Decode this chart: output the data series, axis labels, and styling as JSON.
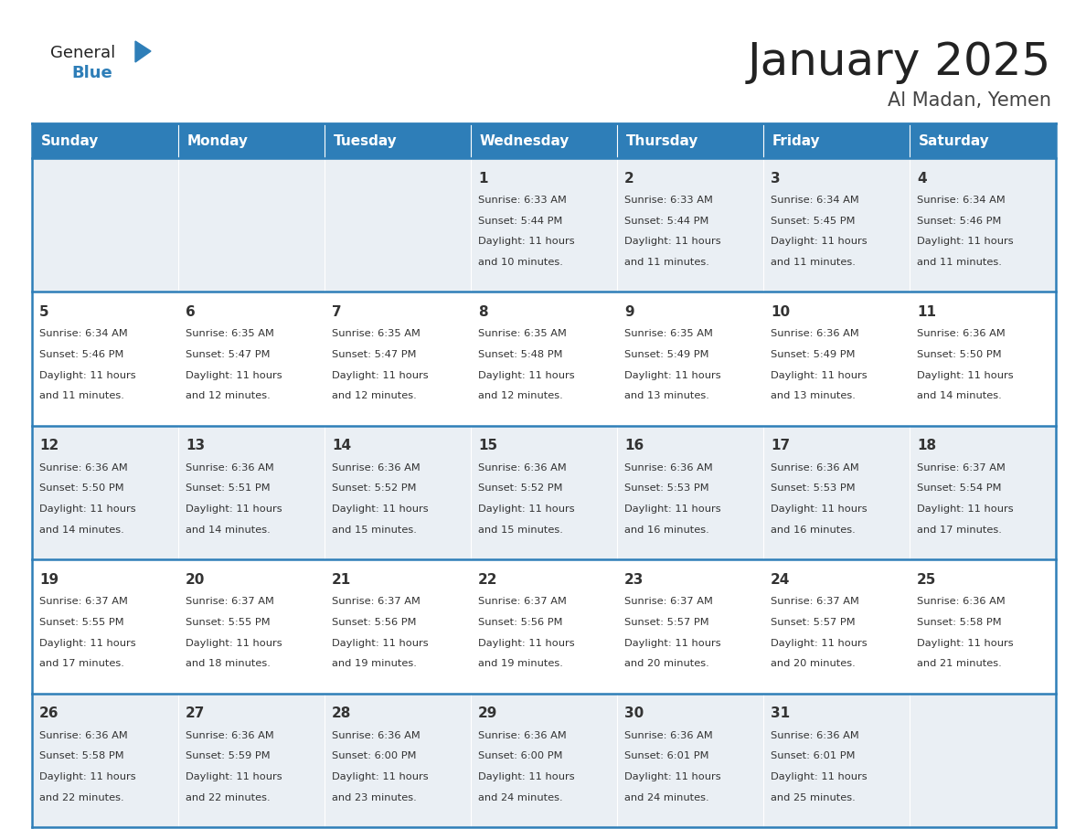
{
  "title": "January 2025",
  "subtitle": "Al Madan, Yemen",
  "header_bg": "#2E7EB8",
  "header_text_color": "#FFFFFF",
  "row_bg_odd": "#EAEFF4",
  "row_bg_even": "#FFFFFF",
  "border_color": "#2E7EB8",
  "title_color": "#222222",
  "subtitle_color": "#444444",
  "day_text_color": "#333333",
  "day_headers": [
    "Sunday",
    "Monday",
    "Tuesday",
    "Wednesday",
    "Thursday",
    "Friday",
    "Saturday"
  ],
  "calendar_data": [
    [
      {
        "day": "",
        "sunrise": "",
        "sunset": "",
        "daylight": ""
      },
      {
        "day": "",
        "sunrise": "",
        "sunset": "",
        "daylight": ""
      },
      {
        "day": "",
        "sunrise": "",
        "sunset": "",
        "daylight": ""
      },
      {
        "day": "1",
        "sunrise": "6:33 AM",
        "sunset": "5:44 PM",
        "daylight_h": "11 hours",
        "daylight_m": "and 10 minutes."
      },
      {
        "day": "2",
        "sunrise": "6:33 AM",
        "sunset": "5:44 PM",
        "daylight_h": "11 hours",
        "daylight_m": "and 11 minutes."
      },
      {
        "day": "3",
        "sunrise": "6:34 AM",
        "sunset": "5:45 PM",
        "daylight_h": "11 hours",
        "daylight_m": "and 11 minutes."
      },
      {
        "day": "4",
        "sunrise": "6:34 AM",
        "sunset": "5:46 PM",
        "daylight_h": "11 hours",
        "daylight_m": "and 11 minutes."
      }
    ],
    [
      {
        "day": "5",
        "sunrise": "6:34 AM",
        "sunset": "5:46 PM",
        "daylight_h": "11 hours",
        "daylight_m": "and 11 minutes."
      },
      {
        "day": "6",
        "sunrise": "6:35 AM",
        "sunset": "5:47 PM",
        "daylight_h": "11 hours",
        "daylight_m": "and 12 minutes."
      },
      {
        "day": "7",
        "sunrise": "6:35 AM",
        "sunset": "5:47 PM",
        "daylight_h": "11 hours",
        "daylight_m": "and 12 minutes."
      },
      {
        "day": "8",
        "sunrise": "6:35 AM",
        "sunset": "5:48 PM",
        "daylight_h": "11 hours",
        "daylight_m": "and 12 minutes."
      },
      {
        "day": "9",
        "sunrise": "6:35 AM",
        "sunset": "5:49 PM",
        "daylight_h": "11 hours",
        "daylight_m": "and 13 minutes."
      },
      {
        "day": "10",
        "sunrise": "6:36 AM",
        "sunset": "5:49 PM",
        "daylight_h": "11 hours",
        "daylight_m": "and 13 minutes."
      },
      {
        "day": "11",
        "sunrise": "6:36 AM",
        "sunset": "5:50 PM",
        "daylight_h": "11 hours",
        "daylight_m": "and 14 minutes."
      }
    ],
    [
      {
        "day": "12",
        "sunrise": "6:36 AM",
        "sunset": "5:50 PM",
        "daylight_h": "11 hours",
        "daylight_m": "and 14 minutes."
      },
      {
        "day": "13",
        "sunrise": "6:36 AM",
        "sunset": "5:51 PM",
        "daylight_h": "11 hours",
        "daylight_m": "and 14 minutes."
      },
      {
        "day": "14",
        "sunrise": "6:36 AM",
        "sunset": "5:52 PM",
        "daylight_h": "11 hours",
        "daylight_m": "and 15 minutes."
      },
      {
        "day": "15",
        "sunrise": "6:36 AM",
        "sunset": "5:52 PM",
        "daylight_h": "11 hours",
        "daylight_m": "and 15 minutes."
      },
      {
        "day": "16",
        "sunrise": "6:36 AM",
        "sunset": "5:53 PM",
        "daylight_h": "11 hours",
        "daylight_m": "and 16 minutes."
      },
      {
        "day": "17",
        "sunrise": "6:36 AM",
        "sunset": "5:53 PM",
        "daylight_h": "11 hours",
        "daylight_m": "and 16 minutes."
      },
      {
        "day": "18",
        "sunrise": "6:37 AM",
        "sunset": "5:54 PM",
        "daylight_h": "11 hours",
        "daylight_m": "and 17 minutes."
      }
    ],
    [
      {
        "day": "19",
        "sunrise": "6:37 AM",
        "sunset": "5:55 PM",
        "daylight_h": "11 hours",
        "daylight_m": "and 17 minutes."
      },
      {
        "day": "20",
        "sunrise": "6:37 AM",
        "sunset": "5:55 PM",
        "daylight_h": "11 hours",
        "daylight_m": "and 18 minutes."
      },
      {
        "day": "21",
        "sunrise": "6:37 AM",
        "sunset": "5:56 PM",
        "daylight_h": "11 hours",
        "daylight_m": "and 19 minutes."
      },
      {
        "day": "22",
        "sunrise": "6:37 AM",
        "sunset": "5:56 PM",
        "daylight_h": "11 hours",
        "daylight_m": "and 19 minutes."
      },
      {
        "day": "23",
        "sunrise": "6:37 AM",
        "sunset": "5:57 PM",
        "daylight_h": "11 hours",
        "daylight_m": "and 20 minutes."
      },
      {
        "day": "24",
        "sunrise": "6:37 AM",
        "sunset": "5:57 PM",
        "daylight_h": "11 hours",
        "daylight_m": "and 20 minutes."
      },
      {
        "day": "25",
        "sunrise": "6:36 AM",
        "sunset": "5:58 PM",
        "daylight_h": "11 hours",
        "daylight_m": "and 21 minutes."
      }
    ],
    [
      {
        "day": "26",
        "sunrise": "6:36 AM",
        "sunset": "5:58 PM",
        "daylight_h": "11 hours",
        "daylight_m": "and 22 minutes."
      },
      {
        "day": "27",
        "sunrise": "6:36 AM",
        "sunset": "5:59 PM",
        "daylight_h": "11 hours",
        "daylight_m": "and 22 minutes."
      },
      {
        "day": "28",
        "sunrise": "6:36 AM",
        "sunset": "6:00 PM",
        "daylight_h": "11 hours",
        "daylight_m": "and 23 minutes."
      },
      {
        "day": "29",
        "sunrise": "6:36 AM",
        "sunset": "6:00 PM",
        "daylight_h": "11 hours",
        "daylight_m": "and 24 minutes."
      },
      {
        "day": "30",
        "sunrise": "6:36 AM",
        "sunset": "6:01 PM",
        "daylight_h": "11 hours",
        "daylight_m": "and 24 minutes."
      },
      {
        "day": "31",
        "sunrise": "6:36 AM",
        "sunset": "6:01 PM",
        "daylight_h": "11 hours",
        "daylight_m": "and 25 minutes."
      },
      {
        "day": "",
        "sunrise": "",
        "sunset": "",
        "daylight_h": "",
        "daylight_m": ""
      }
    ]
  ]
}
